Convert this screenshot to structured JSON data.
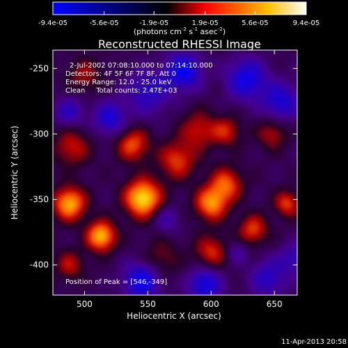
{
  "chart_data": {
    "type": "heatmap",
    "title": "Reconstructed RHESSI Image",
    "xlabel": "Heliocentric X (arcsec)",
    "ylabel": "Heliocentric Y (arcsec)",
    "xlim": [
      475,
      668
    ],
    "ylim": [
      -423,
      -236
    ],
    "xticks": [
      "500",
      "550",
      "600",
      "650"
    ],
    "xtick_values": [
      500,
      550,
      600,
      650
    ],
    "yticks": [
      "-250",
      "-300",
      "-350",
      "-400"
    ],
    "ytick_values": [
      -250,
      -300,
      -350,
      -400
    ],
    "colorbar": {
      "tick_labels": [
        "-9.4e-05",
        "-5.6e-05",
        "-1.9e-05",
        "1.9e-05",
        "5.6e-05",
        "9.4e-05"
      ],
      "tick_values": [
        -9.4e-05,
        -5.6e-05,
        -1.9e-05,
        1.9e-05,
        5.6e-05,
        9.4e-05
      ],
      "range": [
        -9.4e-05,
        9.4e-05
      ],
      "units_label": "(photons cm",
      "units_exp1": "-2",
      "units_mid": " s",
      "units_exp2": "-1",
      "units_end": " asec",
      "units_exp3": "-2",
      "units_close": ")"
    },
    "info_lines": [
      "2-Jul-2002 07:08:10.000 to 07:14:10.000",
      "Detectors: 4F 5F 6F 7F 8F, Att 0",
      "Energy Range: 12.0 - 25.0 keV",
      "Clean     Total counts: 2.47E+03"
    ],
    "peak_label": "Position of Peak = [546,-349]",
    "peak": {
      "x": 546,
      "y": -349
    },
    "colormap": [
      "#0000ff",
      "#000000",
      "#ff0000",
      "#ffff00",
      "#ffffff"
    ],
    "sources": [
      {
        "x": 546,
        "y": -349,
        "amp": 1.0,
        "sigma": 10
      },
      {
        "x": 513,
        "y": -378,
        "amp": 0.9,
        "sigma": 8
      },
      {
        "x": 488,
        "y": -353,
        "amp": 0.85,
        "sigma": 9
      },
      {
        "x": 538,
        "y": -308,
        "amp": 0.6,
        "sigma": 9
      },
      {
        "x": 573,
        "y": -320,
        "amp": 0.55,
        "sigma": 10
      },
      {
        "x": 600,
        "y": -353,
        "amp": 0.75,
        "sigma": 9
      },
      {
        "x": 612,
        "y": -338,
        "amp": 0.6,
        "sigma": 9
      },
      {
        "x": 590,
        "y": -297,
        "amp": 0.45,
        "sigma": 10
      },
      {
        "x": 612,
        "y": -298,
        "amp": 0.45,
        "sigma": 8
      },
      {
        "x": 633,
        "y": -373,
        "amp": 0.55,
        "sigma": 8
      },
      {
        "x": 648,
        "y": -300,
        "amp": 0.4,
        "sigma": 8
      },
      {
        "x": 660,
        "y": -353,
        "amp": 0.55,
        "sigma": 7
      },
      {
        "x": 600,
        "y": -390,
        "amp": 0.5,
        "sigma": 9
      },
      {
        "x": 560,
        "y": -395,
        "amp": 0.3,
        "sigma": 10
      },
      {
        "x": 490,
        "y": -310,
        "amp": 0.45,
        "sigma": 10
      },
      {
        "x": 500,
        "y": -255,
        "amp": 0.35,
        "sigma": 9
      },
      {
        "x": 488,
        "y": -400,
        "amp": 0.4,
        "sigma": 8
      },
      {
        "x": 550,
        "y": -268,
        "amp": -0.5,
        "sigma": 12
      },
      {
        "x": 578,
        "y": -252,
        "amp": -0.75,
        "sigma": 10
      },
      {
        "x": 628,
        "y": -258,
        "amp": -0.7,
        "sigma": 11
      },
      {
        "x": 655,
        "y": -275,
        "amp": -0.6,
        "sigma": 10
      },
      {
        "x": 520,
        "y": -288,
        "amp": -0.6,
        "sigma": 9
      },
      {
        "x": 488,
        "y": -283,
        "amp": -0.45,
        "sigma": 8
      },
      {
        "x": 565,
        "y": -365,
        "amp": -0.35,
        "sigma": 7
      },
      {
        "x": 545,
        "y": -412,
        "amp": -0.75,
        "sigma": 10
      },
      {
        "x": 595,
        "y": -415,
        "amp": -0.7,
        "sigma": 9
      },
      {
        "x": 645,
        "y": -410,
        "amp": -0.5,
        "sigma": 10
      },
      {
        "x": 665,
        "y": -395,
        "amp": -0.4,
        "sigma": 8
      },
      {
        "x": 620,
        "y": -390,
        "amp": -0.3,
        "sigma": 6
      }
    ]
  },
  "footer": {
    "date_stamp": "11-Apr-2013 20:58"
  }
}
